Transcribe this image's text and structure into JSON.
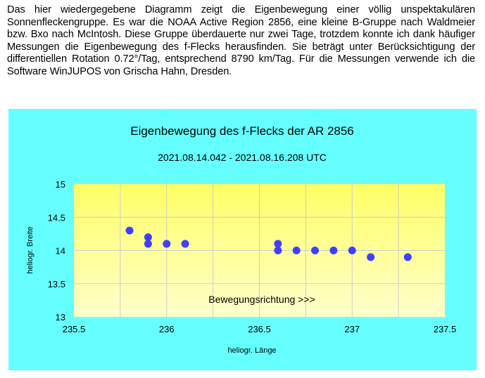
{
  "intro_text": "Das hier wiedergegebene Diagramm zeigt die Eigenbewegung einer völlig unspektakulären Sonnenfleckengruppe. Es war die NOAA Active Region 2856, eine kleine B-Gruppe nach Waldmeier bzw. Bxo nach McIntosh. Diese Gruppe überdauerte nur zwei Tage, trotzdem konnte ich dank häufiger Messungen die Eigenbewegung des f-Flecks herausfinden. Sie beträgt unter Berücksichtigung der differentiellen Rotation 0.72°/Tag, entsprechend 8790 km/Tag. Für die Messungen verwende ich die Software WinJUPOS von Grischa Hahn, Dresden.",
  "chart_data": {
    "type": "scatter",
    "title": "Eigenbewegung des f-Flecks der AR 2856",
    "subtitle": "2021.08.14.042 - 2021.08.16.208 UTC",
    "xlabel": "heliogr. Länge",
    "ylabel": "heliogr. Breite",
    "annotation": "Bewegungsrichtung >>>",
    "xlim": [
      235.5,
      237.5
    ],
    "ylim": [
      13,
      15
    ],
    "xticks": [
      "235.5",
      "236",
      "236.5",
      "237",
      "237.5"
    ],
    "yticks": [
      "13",
      "13.5",
      "14",
      "14.5",
      "15"
    ],
    "grid": true,
    "points": [
      {
        "x": 235.8,
        "y": 14.3
      },
      {
        "x": 235.9,
        "y": 14.2
      },
      {
        "x": 235.9,
        "y": 14.1
      },
      {
        "x": 236.0,
        "y": 14.1
      },
      {
        "x": 236.1,
        "y": 14.1
      },
      {
        "x": 236.6,
        "y": 14.1
      },
      {
        "x": 236.6,
        "y": 14.0
      },
      {
        "x": 236.7,
        "y": 14.0
      },
      {
        "x": 236.8,
        "y": 14.0
      },
      {
        "x": 236.9,
        "y": 14.0
      },
      {
        "x": 237.0,
        "y": 14.0
      },
      {
        "x": 237.1,
        "y": 13.9
      },
      {
        "x": 237.3,
        "y": 13.9
      }
    ],
    "colors": {
      "background": "#66ffff",
      "plot_top": "#ffff66",
      "plot_bottom": "#ffffcc",
      "points": "#3f3fff",
      "grid": "#cccccc"
    }
  }
}
